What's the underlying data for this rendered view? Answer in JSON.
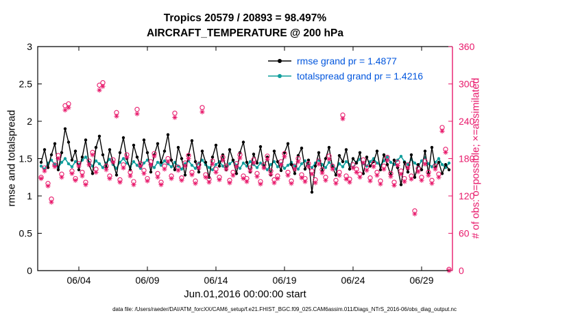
{
  "title_line1": "Tropics 20579 / 20893 = 98.497%",
  "title_line2": "AIRCRAFT_TEMPERATURE @ 200 hPa",
  "y_left_label": "rmse and totalspread",
  "y_right_label": "# of obs: o=possible; ×=assimilated",
  "x_label": "Jun.01,2016 00:00:00 start",
  "caption": "data file: /Users/raeder/DAI/ATM_forcXX/CAM6_setup/f.e21.FHIST_BGC.f09_025.CAM6assim.011/Diags_NTrS_2016-06/obs_diag_output.nc",
  "colors": {
    "rmse": "#000000",
    "totalspread": "#0f9e9c",
    "obs": "#e8196b",
    "legend_text": "#0055dd",
    "axis": "#000000"
  },
  "legend": [
    {
      "label": "rmse grand pr = 1.4877",
      "color": "#000000"
    },
    {
      "label": "totalspread grand pr = 1.4216",
      "color": "#0f9e9c"
    }
  ],
  "chart_data": {
    "type": "line",
    "title": "Tropics 20579 / 20893 = 98.497% | AIRCRAFT_TEMPERATURE @ 200 hPa",
    "xlabel": "Jun.01,2016 00:00:00 start",
    "ylabel_left": "rmse and totalspread",
    "ylabel_right": "# of obs: o=possible; ×=assimilated",
    "grid": false,
    "legend_position": "top-center-inside",
    "x_range_days": [
      1,
      31.25
    ],
    "x_start_day": 1.25,
    "x_step_days": 0.25,
    "x_ticks": [
      {
        "day": 4,
        "label": "06/04"
      },
      {
        "day": 9,
        "label": "06/09"
      },
      {
        "day": 14,
        "label": "06/14"
      },
      {
        "day": 19,
        "label": "06/19"
      },
      {
        "day": 24,
        "label": "06/24"
      },
      {
        "day": 29,
        "label": "06/29"
      }
    ],
    "y_left": {
      "min": 0,
      "max": 3,
      "ticks": [
        0,
        0.5,
        1,
        1.5,
        2,
        2.5,
        3
      ]
    },
    "y_right": {
      "min": 0,
      "max": 360,
      "ticks": [
        0,
        60,
        120,
        180,
        240,
        300,
        360
      ]
    },
    "series": [
      {
        "name": "totalspread",
        "axis": "left",
        "color": "#0f9e9c",
        "marker": "dot",
        "grand_mean": 1.4216,
        "values": [
          1.4,
          1.36,
          1.44,
          1.48,
          1.42,
          1.38,
          1.45,
          1.5,
          1.43,
          1.39,
          1.46,
          1.42,
          1.48,
          1.52,
          1.45,
          1.4,
          1.47,
          1.43,
          1.38,
          1.44,
          1.49,
          1.42,
          1.37,
          1.45,
          1.5,
          1.44,
          1.39,
          1.46,
          1.41,
          1.37,
          1.44,
          1.48,
          1.42,
          1.38,
          1.45,
          1.41,
          1.47,
          1.43,
          1.39,
          1.45,
          1.4,
          1.36,
          1.43,
          1.47,
          1.41,
          1.37,
          1.44,
          1.48,
          1.42,
          1.38,
          1.35,
          1.42,
          1.46,
          1.4,
          1.36,
          1.43,
          1.47,
          1.41,
          1.37,
          1.44,
          1.4,
          1.46,
          1.42,
          1.38,
          1.44,
          1.4,
          1.35,
          1.42,
          1.46,
          1.39,
          1.43,
          1.37,
          1.41,
          1.45,
          1.4,
          1.36,
          1.43,
          1.47,
          1.41,
          1.38,
          1.44,
          1.48,
          1.42,
          1.38,
          1.45,
          1.41,
          1.36,
          1.43,
          1.39,
          1.46,
          1.42,
          1.38,
          1.45,
          1.49,
          1.43,
          1.4,
          1.46,
          1.5,
          1.44,
          1.41,
          1.47,
          1.52,
          1.45,
          1.42,
          1.48,
          1.53,
          1.46,
          1.42,
          1.49,
          1.44,
          1.4,
          1.47,
          1.51,
          1.43,
          1.39,
          1.45,
          1.5,
          1.42,
          1.38,
          1.44
        ]
      },
      {
        "name": "rmse",
        "axis": "left",
        "color": "#000000",
        "marker": "dot",
        "grand_mean": 1.4877,
        "values": [
          1.45,
          1.62,
          1.38,
          1.55,
          1.7,
          1.35,
          1.58,
          1.9,
          1.72,
          1.48,
          1.6,
          1.35,
          1.52,
          1.75,
          1.42,
          1.3,
          1.65,
          1.8,
          1.55,
          1.38,
          1.62,
          1.45,
          1.28,
          1.58,
          1.78,
          1.5,
          1.35,
          1.68,
          1.52,
          1.4,
          1.75,
          1.58,
          1.32,
          1.55,
          1.7,
          1.45,
          1.6,
          1.82,
          1.48,
          1.35,
          1.65,
          1.5,
          1.28,
          1.55,
          1.74,
          1.46,
          1.32,
          1.6,
          1.45,
          1.25,
          1.52,
          1.68,
          1.4,
          1.55,
          1.35,
          1.62,
          1.48,
          1.3,
          1.58,
          1.72,
          1.45,
          1.32,
          1.56,
          1.44,
          1.66,
          1.38,
          1.52,
          1.28,
          1.6,
          1.46,
          1.34,
          1.58,
          1.7,
          1.42,
          1.3,
          1.54,
          1.64,
          1.36,
          1.48,
          1.05,
          1.4,
          1.58,
          1.33,
          1.5,
          1.65,
          1.38,
          1.28,
          1.54,
          1.46,
          1.62,
          1.36,
          1.5,
          1.44,
          1.58,
          1.3,
          1.52,
          1.4,
          1.46,
          1.6,
          1.35,
          1.55,
          1.42,
          1.28,
          1.48,
          1.38,
          1.15,
          1.45,
          1.32,
          1.55,
          1.25,
          1.42,
          1.35,
          1.6,
          1.3,
          1.65,
          1.38,
          1.45,
          1.3,
          1.42,
          1.35
        ]
      },
      {
        "name": "possible_obs",
        "axis": "right",
        "color": "#e8196b",
        "marker": "o",
        "values": [
          150,
          165,
          140,
          115,
          170,
          185,
          155,
          265,
          268,
          160,
          148,
          172,
          158,
          142,
          176,
          190,
          163,
          298,
          302,
          168,
          152,
          178,
          254,
          146,
          170,
          186,
          158,
          143,
          259,
          172,
          161,
          148,
          175,
          188,
          156,
          142,
          168,
          180,
          152,
          253,
          166,
          149,
          173,
          185,
          158,
          144,
          170,
          262,
          154,
          147,
          176,
          163,
          150,
          182,
          168,
          145,
          158,
          172,
          186,
          152,
          148,
          165,
          178,
          156,
          143,
          170,
          184,
          160,
          146,
          152,
          175,
          188,
          158,
          144,
          168,
          180,
          154,
          148,
          172,
          160,
          146,
          176,
          162,
          150,
          184,
          168,
          145,
          158,
          250,
          152,
          147,
          170,
          163,
          155,
          178,
          166,
          149,
          172,
          158,
          144,
          168,
          182,
          156,
          142,
          174,
          160,
          148,
          170,
          152,
          96,
          164,
          150,
          176,
          158,
          145,
          168,
          155,
          230,
          195,
          2
        ]
      },
      {
        "name": "assimilated_obs",
        "axis": "right",
        "color": "#e8196b",
        "marker": "asterisk",
        "values": [
          148,
          160,
          136,
          110,
          167,
          180,
          150,
          258,
          262,
          156,
          145,
          168,
          152,
          138,
          170,
          186,
          158,
          290,
          296,
          162,
          148,
          174,
          248,
          142,
          165,
          182,
          152,
          138,
          252,
          168,
          156,
          144,
          170,
          184,
          150,
          138,
          163,
          175,
          148,
          246,
          161,
          145,
          168,
          180,
          154,
          140,
          165,
          255,
          150,
          142,
          171,
          158,
          146,
          177,
          163,
          141,
          153,
          167,
          181,
          148,
          143,
          160,
          173,
          151,
          139,
          165,
          179,
          155,
          141,
          148,
          170,
          183,
          153,
          140,
          163,
          175,
          149,
          143,
          167,
          155,
          141,
          171,
          157,
          145,
          179,
          163,
          140,
          153,
          244,
          147,
          142,
          165,
          158,
          150,
          173,
          161,
          144,
          167,
          153,
          139,
          163,
          177,
          151,
          137,
          169,
          155,
          143,
          165,
          147,
          91,
          159,
          145,
          171,
          153,
          140,
          163,
          150,
          224,
          190,
          0
        ]
      }
    ]
  }
}
